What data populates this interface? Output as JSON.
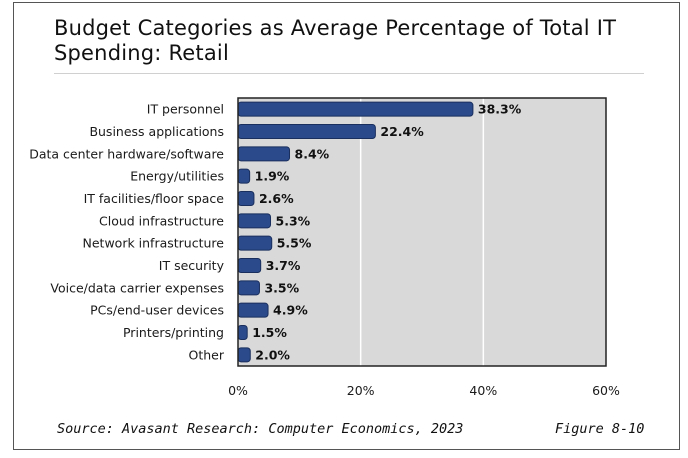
{
  "title": "Budget Categories as Average Percentage of Total IT Spending: Retail",
  "source": "Source: Avasant Research: Computer Economics, 2023",
  "figure_label": "Figure 8-10",
  "colors": {
    "bar": "#2b4a8b",
    "plot_bg": "#d9d9d9",
    "grid": "#ffffff"
  },
  "chart_data": {
    "type": "bar",
    "orientation": "horizontal",
    "title": "Budget Categories as Average Percentage of Total IT Spending: Retail",
    "categories": [
      "IT personnel",
      "Business applications",
      "Data center hardware/software",
      "Energy/utilities",
      "IT facilities/floor space",
      "Cloud infrastructure",
      "Network infrastructure",
      "IT security",
      "Voice/data carrier expenses",
      "PCs/end-user devices",
      "Printers/printing",
      "Other"
    ],
    "values": [
      38.3,
      22.4,
      8.4,
      1.9,
      2.6,
      5.3,
      5.5,
      3.7,
      3.5,
      4.9,
      1.5,
      2.0
    ],
    "value_labels": [
      "38.3%",
      "22.4%",
      "8.4%",
      "1.9%",
      "2.6%",
      "5.3%",
      "5.5%",
      "3.7%",
      "3.5%",
      "4.9%",
      "1.5%",
      "2.0%"
    ],
    "xlim": [
      0,
      60
    ],
    "xticks": [
      0,
      20,
      40,
      60
    ],
    "xtick_labels": [
      "0%",
      "20%",
      "40%",
      "60%"
    ],
    "grid": true
  }
}
